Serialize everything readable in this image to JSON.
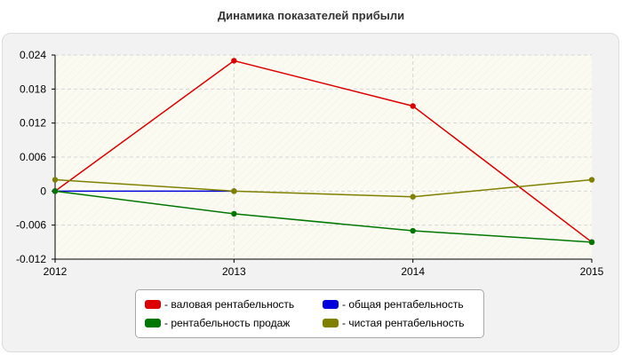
{
  "chart_data": {
    "type": "line",
    "title": "Динамика показателей прибыли",
    "xlabel": "",
    "ylabel": "",
    "categories": [
      "2012",
      "2013",
      "2014",
      "2015"
    ],
    "ylim": [
      -0.012,
      0.024
    ],
    "yticks": [
      "0.024",
      "0.018",
      "0.012",
      "0.006",
      "0",
      "-0.006",
      "-0.012"
    ],
    "ytick_values": [
      0.024,
      0.018,
      0.012,
      0.006,
      0,
      -0.006,
      -0.012
    ],
    "grid": true,
    "legend_position": "bottom",
    "series": [
      {
        "name": "валовая рентабельность",
        "color": "#dd0000",
        "values": [
          0.0,
          0.023,
          0.015,
          -0.009
        ]
      },
      {
        "name": "общая рентабельность",
        "color": "#0000dd",
        "values": [
          0.0,
          0.0,
          null,
          null
        ]
      },
      {
        "name": "рентабельность продаж",
        "color": "#007700",
        "values": [
          0.0,
          -0.004,
          -0.007,
          -0.009
        ]
      },
      {
        "name": "чистая рентабельность",
        "color": "#808000",
        "values": [
          0.002,
          0.0,
          -0.001,
          0.002
        ]
      }
    ],
    "legend": [
      {
        "label": "- валовая рентабельность",
        "color": "#dd0000"
      },
      {
        "label": "- общая рентабельность",
        "color": "#0000dd"
      },
      {
        "label": "- рентабельность продаж",
        "color": "#007700"
      },
      {
        "label": "- чистая рентабельность",
        "color": "#808000"
      }
    ]
  }
}
